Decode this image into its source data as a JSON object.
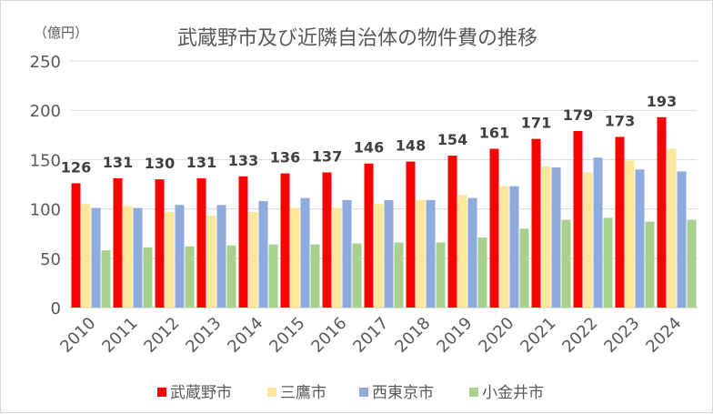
{
  "chart_data": {
    "type": "bar",
    "title": "武蔵野市及び近隣自治体の物件費の推移",
    "unit_label": "（億円）",
    "categories": [
      "2010",
      "2011",
      "2012",
      "2013",
      "2014",
      "2015",
      "2016",
      "2017",
      "2018",
      "2019",
      "2020",
      "2021",
      "2022",
      "2023",
      "2024"
    ],
    "ylim": [
      0,
      250
    ],
    "yticks": [
      0,
      50,
      100,
      150,
      200,
      250
    ],
    "grid": true,
    "legend_position": "bottom",
    "series": [
      {
        "name": "武蔵野市",
        "color": "#ff0000",
        "show_labels": true,
        "values": [
          126,
          131,
          130,
          131,
          133,
          136,
          137,
          146,
          148,
          154,
          161,
          171,
          179,
          173,
          193
        ]
      },
      {
        "name": "三鷹市",
        "color": "#ffe699",
        "show_labels": false,
        "values": [
          105,
          103,
          97,
          93,
          97,
          101,
          101,
          105,
          109,
          114,
          123,
          143,
          137,
          149,
          161
        ]
      },
      {
        "name": "西東京市",
        "color": "#8faadc",
        "show_labels": false,
        "values": [
          101,
          101,
          104,
          104,
          108,
          111,
          109,
          109,
          109,
          111,
          123,
          142,
          152,
          140,
          138
        ]
      },
      {
        "name": "小金井市",
        "color": "#a9d18e",
        "show_labels": false,
        "values": [
          58,
          61,
          62,
          63,
          64,
          64,
          65,
          66,
          66,
          71,
          80,
          89,
          91,
          87,
          89
        ]
      }
    ]
  }
}
